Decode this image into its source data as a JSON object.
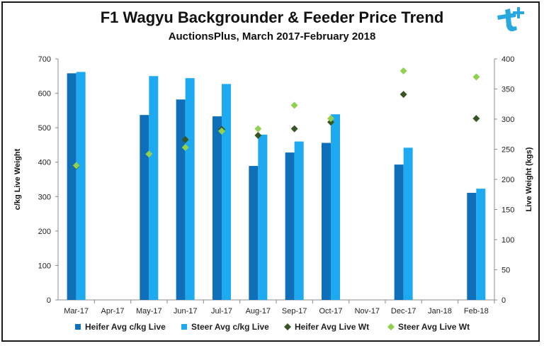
{
  "chart_data": {
    "type": "bar",
    "title": "F1 Wagyu Backgrounder & Feeder Price Trend",
    "subtitle": "AuctionsPlus, March 2017-February 2018",
    "categories": [
      "Mar-17",
      "Apr-17",
      "May-17",
      "Jun-17",
      "Jul-17",
      "Aug-17",
      "Sep-17",
      "Oct-17",
      "Nov-17",
      "Dec-17",
      "Jan-18",
      "Feb-18"
    ],
    "ylabel": "c/kg Live Weight",
    "y2label": "Live Weight (kgs)",
    "ylim": [
      0,
      700
    ],
    "y2lim": [
      0,
      400
    ],
    "yticks": [
      "0",
      "100",
      "200",
      "300",
      "400",
      "500",
      "600",
      "700"
    ],
    "y2ticks": [
      "0",
      "50",
      "100",
      "150",
      "200",
      "250",
      "300",
      "350",
      "400"
    ],
    "grid": false,
    "legend_position": "bottom",
    "series": [
      {
        "name": "Heifer Avg c/kg Live",
        "kind": "bar",
        "axis": "left",
        "color": "#0f6fb8",
        "values": [
          658,
          null,
          537,
          582,
          533,
          389,
          428,
          456,
          null,
          393,
          null,
          311
        ]
      },
      {
        "name": "Steer Avg c/kg Live",
        "kind": "bar",
        "axis": "left",
        "color": "#1eaaf1",
        "values": [
          662,
          null,
          650,
          644,
          627,
          480,
          460,
          539,
          null,
          442,
          null,
          323
        ]
      },
      {
        "name": "Heifer Avg Live Wt",
        "kind": "marker",
        "axis": "right",
        "color": "#375623",
        "values": [
          222,
          null,
          null,
          266,
          283,
          273,
          284,
          295,
          null,
          341,
          null,
          301
        ]
      },
      {
        "name": "Steer Avg Live Wt",
        "kind": "marker",
        "axis": "right",
        "color": "#92d050",
        "values": [
          223,
          null,
          242,
          253,
          280,
          284,
          323,
          301,
          null,
          380,
          null,
          370
        ]
      }
    ]
  },
  "logo": {
    "name": "auctionsplus-logo-icon",
    "color": "#29a8e0"
  }
}
